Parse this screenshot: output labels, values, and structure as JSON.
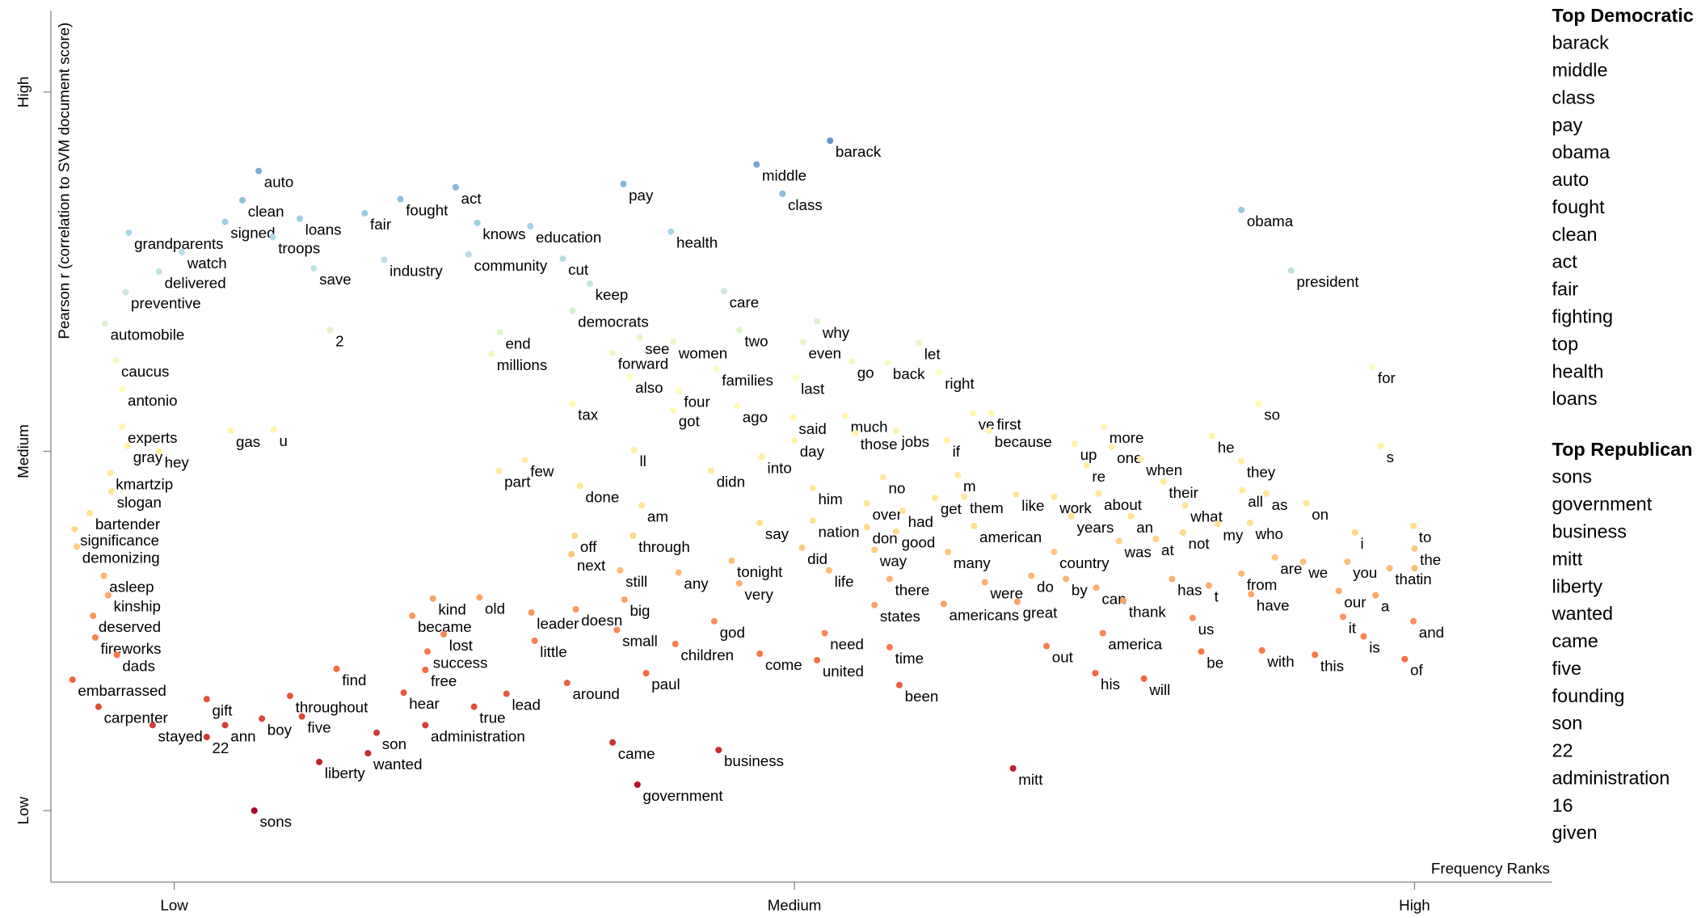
{
  "chart_data": {
    "type": "scatter",
    "y_label": "Pearson r (correlation to SVM document score)",
    "x_label": "Frequency Ranks",
    "xlim": [
      52,
      1439
    ],
    "ylim": [
      174,
      979
    ],
    "xticks": [
      {
        "value": 166,
        "label": "Low"
      },
      {
        "value": 739,
        "label": "Medium"
      },
      {
        "value": 1312,
        "label": "High"
      }
    ],
    "yticks": [
      {
        "value": 240,
        "label": "Low"
      },
      {
        "value": 572,
        "label": "Medium"
      },
      {
        "value": 904,
        "label": "High"
      }
    ],
    "labels": [
      "barack",
      "middle",
      "class",
      "pay",
      "health",
      "care",
      "obama",
      "president",
      "auto",
      "clean",
      "loans",
      "signed",
      "troops",
      "grandparents",
      "watch",
      "save",
      "delivered",
      "preventive",
      "automobile",
      "2",
      "caucus",
      "antonio",
      "experts",
      "gas",
      "u",
      "gray",
      "hey",
      "kmartzip",
      "slogan",
      "bartender",
      "significance",
      "demonizing",
      "asleep",
      "kinship",
      "deserved",
      "fireworks",
      "dads",
      "embarrassed",
      "carpenter",
      "gift",
      "stayed",
      "ann",
      "22",
      "boy",
      "five",
      "throughout",
      "find",
      "liberty",
      "son",
      "wanted",
      "sons",
      "fair",
      "fought",
      "act",
      "knows",
      "education",
      "industry",
      "community",
      "cut",
      "keep",
      "democrats",
      "end",
      "millions",
      "see",
      "forward",
      "women",
      "also",
      "tax",
      "four",
      "got",
      "part",
      "few",
      "done",
      "ll",
      "am",
      "kind",
      "old",
      "became",
      "lost",
      "success",
      "free",
      "hear",
      "true",
      "lead",
      "administration",
      "leader",
      "doesn",
      "little",
      "big",
      "small",
      "off",
      "next",
      "through",
      "still",
      "any",
      "around",
      "paul",
      "came",
      "government",
      "business",
      "two",
      "families",
      "ago",
      "didn",
      "into",
      "say",
      "tonight",
      "very",
      "god",
      "children",
      "come",
      "need",
      "united",
      "time",
      "been",
      "life",
      "did",
      "him",
      "nation",
      "way",
      "states",
      "there",
      "over",
      "don",
      "had",
      "good",
      "no",
      "why",
      "even",
      "go",
      "last",
      "said",
      "day",
      "much",
      "those",
      "jobs",
      "let",
      "back",
      "right",
      "if",
      "ve",
      "first",
      "because",
      "m",
      "get",
      "them",
      "like",
      "american",
      "many",
      "were",
      "americans",
      "great",
      "do",
      "by",
      "out",
      "country",
      "work",
      "years",
      "up",
      "re",
      "more",
      "one",
      "about",
      "when",
      "an",
      "their",
      "was",
      "at",
      "can",
      "thank",
      "america",
      "his",
      "will",
      "what",
      "not",
      "my",
      "who",
      "has",
      "t",
      "us",
      "from",
      "be",
      "with",
      "have",
      "this",
      "are",
      "we",
      "our",
      "it",
      "is",
      "a",
      "you",
      "that",
      "in",
      "i",
      "to",
      "the",
      "and",
      "of",
      "on",
      "as",
      "all",
      "they",
      "he",
      "s",
      "so",
      "for",
      "mitt"
    ],
    "x": [
      772,
      704,
      728,
      581,
      625,
      674,
      1152,
      1198,
      244,
      229,
      282,
      213,
      257,
      124,
      173,
      295,
      152,
      121,
      102,
      310,
      112,
      118,
      118,
      218,
      258,
      123,
      152,
      107,
      108,
      88,
      74,
      76,
      101,
      105,
      91,
      93,
      113,
      72,
      96,
      196,
      146,
      213,
      196,
      247,
      284,
      273,
      316,
      300,
      353,
      345,
      240,
      342,
      375,
      426,
      446,
      495,
      360,
      438,
      525,
      550,
      534,
      467,
      459,
      596,
      571,
      627,
      587,
      534,
      632,
      627,
      466,
      490,
      541,
      591,
      598,
      405,
      448,
      386,
      415,
      400,
      398,
      378,
      443,
      473,
      398,
      496,
      537,
      499,
      582,
      575,
      536,
      533,
      590,
      578,
      632,
      529,
      602,
      571,
      594,
      669,
      688,
      667,
      686,
      662,
      709,
      707,
      681,
      688,
      665,
      629,
      707,
      767,
      760,
      827,
      836,
      771,
      746,
      756,
      756,
      813,
      813,
      827,
      806,
      806,
      839,
      833,
      821,
      760,
      747,
      792,
      740,
      738,
      739,
      786,
      795,
      833,
      854,
      825,
      873,
      880,
      904,
      921,
      919,
      890,
      869,
      896,
      944,
      905,
      881,
      915,
      877,
      945,
      958,
      990,
      972,
      979,
      979,
      995,
      998,
      1009,
      1025,
      1032,
      1020,
      1059,
      1050,
      1080,
      1039,
      1073,
      1018,
      1043,
      1024,
      1017,
      1062,
      1100,
      1098,
      1130,
      1160,
      1088,
      1122,
      1107,
      1152,
      1115,
      1171,
      1161,
      1220,
      1183,
      1209,
      1242,
      1246,
      1265,
      1276,
      1250,
      1289,
      1312,
      1257,
      1311,
      1312,
      1311,
      1303,
      1212,
      1175,
      1153,
      1152,
      1125,
      1281,
      1168,
      1273,
      941
    ],
    "values": [
      859,
      837,
      810,
      819,
      775,
      720,
      795,
      739,
      831,
      804,
      787,
      784,
      770,
      774,
      756,
      741,
      738,
      719,
      690,
      684,
      656,
      629,
      595,
      591,
      592,
      577,
      572,
      552,
      535,
      515,
      500,
      484,
      457,
      439,
      420,
      400,
      384,
      361,
      336,
      343,
      319,
      319,
      308,
      325,
      327,
      346,
      371,
      285,
      312,
      293,
      240,
      792,
      805,
      816,
      783,
      780,
      749,
      754,
      750,
      727,
      702,
      682,
      662,
      677,
      663,
      673,
      641,
      616,
      628,
      610,
      554,
      564,
      540,
      573,
      522,
      436,
      437,
      420,
      403,
      387,
      370,
      349,
      336,
      348,
      319,
      423,
      426,
      397,
      435,
      407,
      494,
      477,
      494,
      462,
      460,
      358,
      367,
      303,
      264,
      296,
      684,
      648,
      614,
      554,
      567,
      506,
      471,
      450,
      415,
      394,
      385,
      404,
      379,
      391,
      356,
      462,
      483,
      538,
      508,
      481,
      430,
      454,
      524,
      502,
      517,
      498,
      548,
      692,
      673,
      655,
      640,
      603,
      582,
      605,
      589,
      591,
      672,
      654,
      645,
      582,
      607,
      607,
      591,
      550,
      529,
      530,
      532,
      503,
      479,
      451,
      431,
      433,
      457,
      454,
      392,
      479,
      530,
      512,
      579,
      559,
      595,
      576,
      533,
      565,
      512,
      544,
      489,
      491,
      446,
      434,
      404,
      367,
      362,
      522,
      497,
      505,
      506,
      454,
      448,
      418,
      459,
      387,
      388,
      440,
      384,
      474,
      470,
      443,
      419,
      401,
      439,
      470,
      464,
      464,
      497,
      503,
      482,
      415,
      380,
      524,
      533,
      536,
      563,
      586,
      577,
      616,
      650,
      279
    ]
  },
  "top_democratic": {
    "title": "Top Democratic",
    "terms": [
      "barack",
      "middle",
      "class",
      "pay",
      "obama",
      "auto",
      "fought",
      "clean",
      "act",
      "fair",
      "fighting",
      "top",
      "health",
      "loans"
    ]
  },
  "top_republican": {
    "title": "Top Republican",
    "terms": [
      "sons",
      "government",
      "business",
      "mitt",
      "liberty",
      "wanted",
      "came",
      "five",
      "founding",
      "son",
      "22",
      "administration",
      "16",
      "given"
    ]
  }
}
